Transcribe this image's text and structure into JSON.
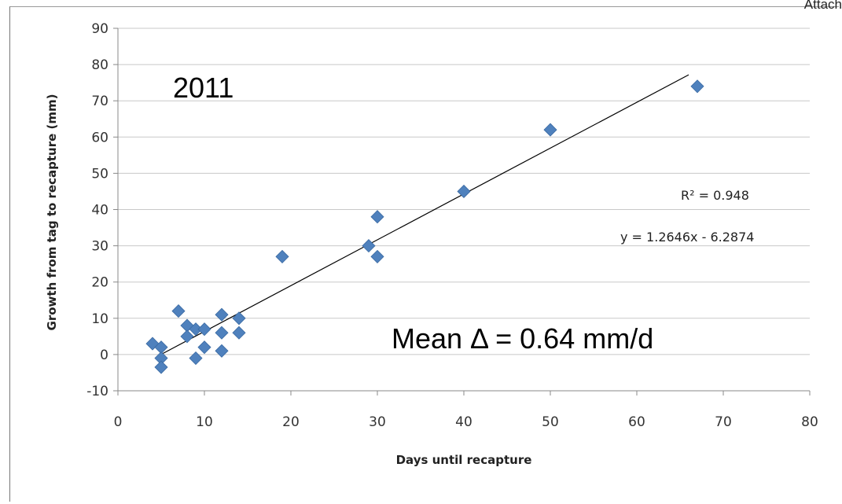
{
  "corner_label": "Attach",
  "chart_data": {
    "type": "scatter",
    "xlabel": "Days until recapture",
    "ylabel": "Growth from tag to recapture (mm)",
    "xlim": [
      0,
      80
    ],
    "ylim": [
      -10,
      90
    ],
    "x_ticks": [
      0,
      10,
      20,
      30,
      40,
      50,
      60,
      70,
      80
    ],
    "y_ticks": [
      -10,
      0,
      10,
      20,
      30,
      40,
      50,
      60,
      70,
      80,
      90
    ],
    "grid": "horizontal",
    "marker_color": "#4F81BD",
    "trendline_color": "#000000",
    "points": [
      {
        "x": 4,
        "y": 3
      },
      {
        "x": 5,
        "y": 2
      },
      {
        "x": 5,
        "y": -1
      },
      {
        "x": 5,
        "y": -3.5
      },
      {
        "x": 7,
        "y": 12
      },
      {
        "x": 8,
        "y": 8
      },
      {
        "x": 8,
        "y": 5
      },
      {
        "x": 9,
        "y": 7
      },
      {
        "x": 9,
        "y": -1
      },
      {
        "x": 10,
        "y": 7
      },
      {
        "x": 10,
        "y": 2
      },
      {
        "x": 12,
        "y": 11
      },
      {
        "x": 12,
        "y": 6
      },
      {
        "x": 12,
        "y": 1
      },
      {
        "x": 14,
        "y": 10
      },
      {
        "x": 14,
        "y": 6
      },
      {
        "x": 19,
        "y": 27
      },
      {
        "x": 29,
        "y": 30
      },
      {
        "x": 30,
        "y": 38
      },
      {
        "x": 30,
        "y": 27
      },
      {
        "x": 40,
        "y": 45
      },
      {
        "x": 50,
        "y": 62
      },
      {
        "x": 67,
        "y": 74
      }
    ],
    "trendline": {
      "slope": 1.2646,
      "intercept": -6.2874,
      "x_range": [
        4.5,
        66
      ]
    },
    "annotations": {
      "year": "2011",
      "mean": "Mean Δ = 0.64 mm/d",
      "r_squared": "R² = 0.948",
      "equation": "y = 1.2646x - 6.2874"
    }
  }
}
